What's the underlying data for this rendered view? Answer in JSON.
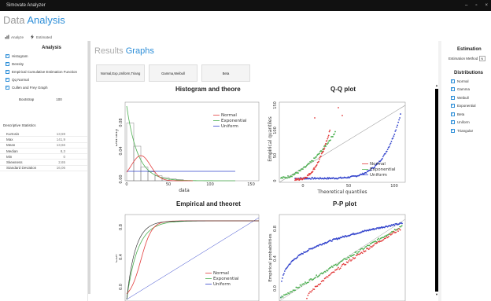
{
  "window": {
    "title": "Simovate Analyzer",
    "controls": [
      "–",
      "▫",
      "×"
    ]
  },
  "header": {
    "primary": "Data",
    "secondary": "Analysis"
  },
  "toolbar": {
    "analyze": "Analyze",
    "estimated": "Estimated"
  },
  "left": {
    "heading": "Analysis",
    "checkboxes": [
      {
        "label": "Histogram",
        "checked": true
      },
      {
        "label": "Density",
        "checked": true
      },
      {
        "label": "Empirical Cumulative Estimation Function",
        "checked": true
      },
      {
        "label": "Qq Normal",
        "checked": true
      },
      {
        "label": "Cullen and Frey Graph",
        "checked": true
      }
    ],
    "bootstrap": {
      "label": "Bootstrap",
      "value": "100"
    },
    "desc_heading": "Descriptive Statistics",
    "stats": [
      {
        "label": "Kurtosis",
        "value": "13,59"
      },
      {
        "label": "Max",
        "value": "141,9"
      },
      {
        "label": "Mean",
        "value": "13,66"
      },
      {
        "label": "Median",
        "value": "8,3"
      },
      {
        "label": "Min",
        "value": "0"
      },
      {
        "label": "Skewness",
        "value": "2,65"
      },
      {
        "label": "Standard Deviation",
        "value": "16,06"
      }
    ]
  },
  "results": {
    "title": "Results",
    "subtitle": "Graphs",
    "buttons": [
      "Normal,Exp,Uniform,Triang",
      "Gamma,Weibull",
      "Beta"
    ]
  },
  "plots": {
    "hist": {
      "title": "Histogram and theore",
      "xlabel": "data",
      "ylabel": "Density",
      "xticks": [
        "0",
        "50",
        "100",
        "150"
      ],
      "yticks": [
        "0.00",
        "0.04",
        "0.08"
      ],
      "legend": [
        "Normal",
        "Exponential",
        "Uniform"
      ]
    },
    "qq": {
      "title": "Q-Q plot",
      "xlabel": "Theoretical quantiles",
      "ylabel": "Empirical quantiles",
      "xticks": [
        "0",
        "50",
        "100"
      ],
      "yticks": [
        "0",
        "50",
        "100",
        "150"
      ],
      "legend": [
        "Normal",
        "Exponential",
        "Uniform"
      ]
    },
    "cdf": {
      "title": "Empirical and theoret",
      "ylabel": "CDF",
      "yticks": [
        "0.0",
        "0.4",
        "0.8"
      ],
      "legend": [
        "Normal",
        "Exponential",
        "Uniform"
      ]
    },
    "pp": {
      "title": "P-P plot",
      "ylabel": "Empirical probabilities",
      "yticks": [
        "0.0",
        "0.4",
        "0.8"
      ]
    }
  },
  "right": {
    "heading": "Estimation",
    "method_label": "Estimation Method",
    "method_value": "N",
    "dist_heading": "Distributions",
    "distributions": [
      {
        "label": "Normal",
        "checked": true
      },
      {
        "label": "Gamma",
        "checked": true
      },
      {
        "label": "Weibull",
        "checked": true
      },
      {
        "label": "Exponential",
        "checked": true
      },
      {
        "label": "Beta",
        "checked": true
      },
      {
        "label": "Uniform",
        "checked": true
      },
      {
        "label": "Triangular",
        "checked": true
      }
    ]
  },
  "colors": {
    "accent": "#2d8ed8",
    "normal": "#e23b3b",
    "exponential": "#4caf50",
    "uniform": "#3344cc"
  }
}
